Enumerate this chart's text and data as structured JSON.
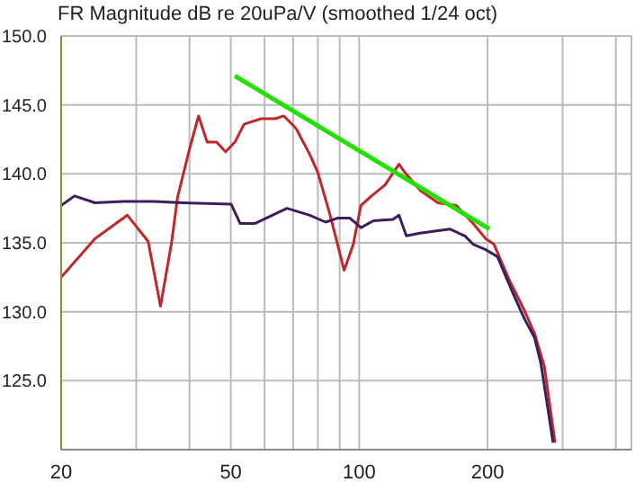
{
  "chart_data": {
    "type": "line",
    "title": "FR Magnitude dB re 20uPa/V (smoothed 1/24 oct)",
    "log": "x",
    "grid": true,
    "xlim": [
      20,
      435
    ],
    "xticks": [
      20,
      {
        "value": 30,
        "label": null
      },
      {
        "value": 40,
        "label": null
      },
      50,
      {
        "value": 60,
        "label": null
      },
      {
        "value": 70,
        "label": null
      },
      {
        "value": 80,
        "label": null
      },
      {
        "value": 90,
        "label": null
      },
      100,
      200,
      {
        "value": 300,
        "label": null
      },
      {
        "value": 400,
        "label": null
      }
    ],
    "ylim": [
      120,
      150
    ],
    "yticks": [
      {
        "value": 120,
        "label": null
      },
      {
        "value": 125,
        "label": "125.0"
      },
      {
        "value": 130,
        "label": "130.0"
      },
      {
        "value": 135,
        "label": "135.0"
      },
      {
        "value": 140,
        "label": "140.0"
      },
      {
        "value": 145,
        "label": "145.0"
      },
      {
        "value": 150,
        "label": "150.0"
      }
    ],
    "series": [
      {
        "color": "#c0272d",
        "x": [
          20,
          24,
          28.6,
          32,
          34.2,
          36.3,
          37.5,
          40,
          42,
          44,
          46.3,
          48.6,
          51.1,
          53.7,
          58.9,
          63.5,
          66.6,
          71.1,
          76.6,
          80,
          85.5,
          89.8,
          92.2,
          96.9,
          100.9,
          106,
          115,
          124,
          128,
          139,
          153,
          169,
          185,
          198,
          207,
          225,
          244,
          258,
          272,
          288
        ],
        "values": [
          132.5,
          135.3,
          137.0,
          135.1,
          130.4,
          135.0,
          138.3,
          141.8,
          144.2,
          142.3,
          142.3,
          141.6,
          142.3,
          143.6,
          144.0,
          144.0,
          144.2,
          143.3,
          141.4,
          140.1,
          137.0,
          134.4,
          133.0,
          134.9,
          137.7,
          138.3,
          139.2,
          140.7,
          140.1,
          138.8,
          137.9,
          137.7,
          136.4,
          135.3,
          134.9,
          132.3,
          130.1,
          128.4,
          126.0,
          120.5
        ]
      },
      {
        "color": "#3b1e5a",
        "x": [
          20,
          21.5,
          24,
          28,
          33,
          38.5,
          50.1,
          52.6,
          56.9,
          67.7,
          76.6,
          83.4,
          89.2,
          95,
          101,
          108,
          120,
          124,
          129,
          139,
          163,
          177,
          185,
          198,
          211,
          229,
          244,
          258,
          267,
          285
        ],
        "values": [
          137.7,
          138.4,
          137.9,
          138.0,
          138.0,
          137.9,
          137.8,
          136.4,
          136.4,
          137.5,
          137.0,
          136.5,
          136.8,
          136.8,
          136.1,
          136.6,
          136.7,
          137.0,
          135.5,
          135.7,
          136.0,
          135.5,
          134.9,
          134.5,
          134.0,
          131.4,
          129.5,
          128.1,
          126.2,
          120.5
        ]
      },
      {
        "type": "line",
        "color": "#22e000",
        "x": [
          51.1,
          202
        ],
        "values": [
          147.1,
          136.0
        ]
      }
    ]
  }
}
